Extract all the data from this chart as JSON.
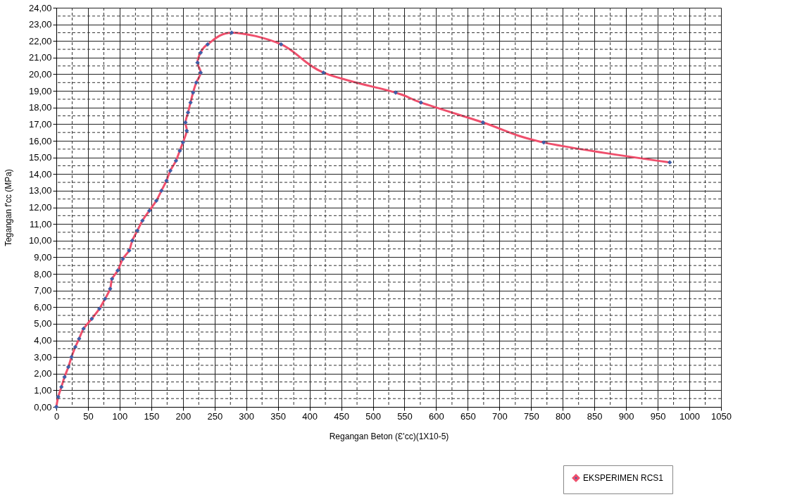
{
  "chart_data": {
    "type": "line",
    "xlabel": "Regangan Beton (Ɛ'cc)(1X10-5)",
    "ylabel": "Tegangan f'cc (MPa)",
    "xlim": [
      0,
      1050
    ],
    "xticks": [
      0,
      50,
      100,
      150,
      200,
      250,
      300,
      350,
      400,
      450,
      500,
      550,
      600,
      650,
      700,
      750,
      800,
      850,
      900,
      950,
      1000,
      1050
    ],
    "ylim": [
      0,
      24
    ],
    "yticks": [
      {
        "value": 0,
        "label": "0,00"
      },
      {
        "value": 1,
        "label": "1,00"
      },
      {
        "value": 2,
        "label": "2,00"
      },
      {
        "value": 3,
        "label": "3,00"
      },
      {
        "value": 4,
        "label": "4,00"
      },
      {
        "value": 5,
        "label": "5,00"
      },
      {
        "value": 6,
        "label": "6,00"
      },
      {
        "value": 7,
        "label": "7,00"
      },
      {
        "value": 8,
        "label": "8,00"
      },
      {
        "value": 9,
        "label": "9,00"
      },
      {
        "value": 10,
        "label": "10,00"
      },
      {
        "value": 11,
        "label": "11,00"
      },
      {
        "value": 12,
        "label": "12,00"
      },
      {
        "value": 13,
        "label": "13,00"
      },
      {
        "value": 14,
        "label": "14,00"
      },
      {
        "value": 15,
        "label": "15,00"
      },
      {
        "value": 16,
        "label": "16,00"
      },
      {
        "value": 17,
        "label": "17,00"
      },
      {
        "value": 18,
        "label": "18,00"
      },
      {
        "value": 19,
        "label": "19,00"
      },
      {
        "value": 20,
        "label": "20,00"
      },
      {
        "value": 21,
        "label": "21,00"
      },
      {
        "value": 22,
        "label": "22,00"
      },
      {
        "value": 23,
        "label": "23,00"
      },
      {
        "value": 24,
        "label": "24,00"
      }
    ],
    "grid": true,
    "legend": "bottom right",
    "marker": "diamond",
    "line_style": "solid",
    "series": [
      {
        "name": "EKSPERIMEN RCS1",
        "color": "#ef4f6c",
        "x": [
          0,
          3,
          8,
          13,
          19,
          24,
          30,
          36,
          43,
          56,
          68,
          77,
          85,
          88,
          97,
          105,
          115,
          120,
          128,
          136,
          147,
          158,
          166,
          174,
          180,
          189,
          195,
          200,
          206,
          204,
          208,
          212,
          216,
          221,
          228,
          223,
          228,
          239,
          277,
          355,
          422,
          536,
          576,
          674,
          770,
          969
        ],
        "values": [
          0,
          0.6,
          1.2,
          1.8,
          2.4,
          3.0,
          3.6,
          4.1,
          4.7,
          5.3,
          5.9,
          6.5,
          7.1,
          7.7,
          8.2,
          8.9,
          9.4,
          10.0,
          10.6,
          11.2,
          11.8,
          12.4,
          13.0,
          13.6,
          14.2,
          14.8,
          15.4,
          15.9,
          16.6,
          17.1,
          17.7,
          18.3,
          18.9,
          19.5,
          20.1,
          20.7,
          21.3,
          21.8,
          22.5,
          21.8,
          20.1,
          18.9,
          18.3,
          17.1,
          15.9,
          14.7
        ]
      }
    ]
  }
}
